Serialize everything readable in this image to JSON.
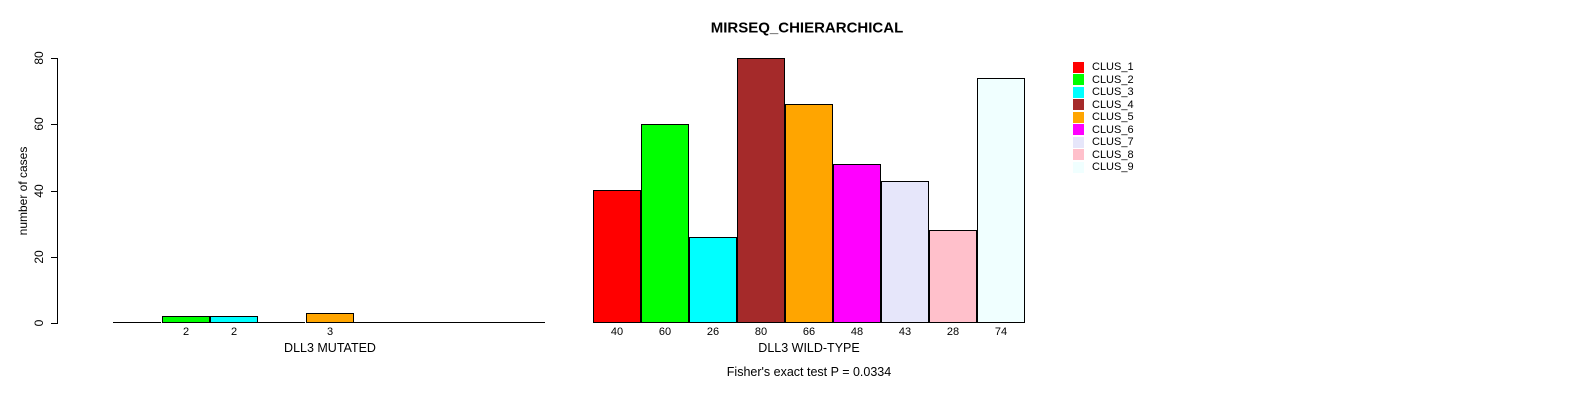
{
  "chart_data": {
    "type": "bar",
    "title": "MIRSEQ_CHIERARCHICAL",
    "ylabel": "number of cases",
    "xlabel": "",
    "ylim": [
      0,
      80
    ],
    "yticks": [
      0,
      20,
      40,
      60,
      80
    ],
    "grid": false,
    "legend_position": "top-right",
    "series_labels": [
      "CLUS_1",
      "CLUS_2",
      "CLUS_3",
      "CLUS_4",
      "CLUS_5",
      "CLUS_6",
      "CLUS_7",
      "CLUS_8",
      "CLUS_9"
    ],
    "series_colors": [
      "#FF0000",
      "#00FF00",
      "#00FFFF",
      "#A52A2A",
      "#FFA500",
      "#FF00FF",
      "#E6E6FA",
      "#FFC0CB",
      "#F0FFFF"
    ],
    "groups": [
      {
        "label": "DLL3 MUTATED",
        "values": [
          0,
          2,
          2,
          0,
          3,
          0,
          0,
          0,
          0
        ],
        "bar_labels": [
          "",
          "2",
          "2",
          "",
          "3",
          "",
          "",
          "",
          ""
        ]
      },
      {
        "label": "DLL3 WILD-TYPE",
        "values": [
          40,
          60,
          26,
          80,
          66,
          48,
          43,
          28,
          74
        ],
        "bar_labels": [
          "40",
          "60",
          "26",
          "80",
          "66",
          "48",
          "43",
          "28",
          "74"
        ]
      }
    ],
    "annotation": "Fisher's exact test P = 0.0334"
  }
}
